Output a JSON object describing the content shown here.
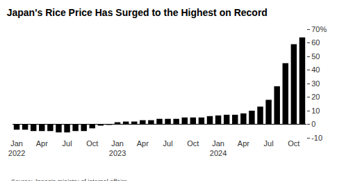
{
  "chart_data": {
    "type": "bar",
    "title": "Japan's Rice Price Has Surged to the Highest on Record",
    "source": "Source: Japan's ministry of internal affairs",
    "categories": [
      "Jan\n2022",
      null,
      null,
      "Apr",
      null,
      null,
      "Jul",
      null,
      null,
      "Oct",
      null,
      null,
      "Jan\n2023",
      null,
      null,
      "Apr",
      null,
      null,
      "Jul",
      null,
      null,
      "Oct",
      null,
      null,
      "Jan\n2024",
      null,
      null,
      "Apr",
      null,
      null,
      "Jul",
      null,
      null,
      "Oct",
      null
    ],
    "values": [
      -4,
      -4,
      -5,
      -5,
      -5,
      -6,
      -6,
      -5,
      -5,
      -3,
      -1,
      -0.5,
      1.5,
      2,
      2,
      3,
      3,
      4,
      4,
      4,
      5,
      5,
      5,
      6,
      6.5,
      7,
      7,
      8,
      10,
      13,
      18,
      28,
      45,
      59,
      64
    ],
    "color": "#000000",
    "ylim": [
      -10,
      70
    ],
    "yticks": [
      -10,
      0,
      10,
      20,
      30,
      40,
      50,
      60,
      {
        "value": 70,
        "label": "70%"
      }
    ],
    "grid": false
  }
}
